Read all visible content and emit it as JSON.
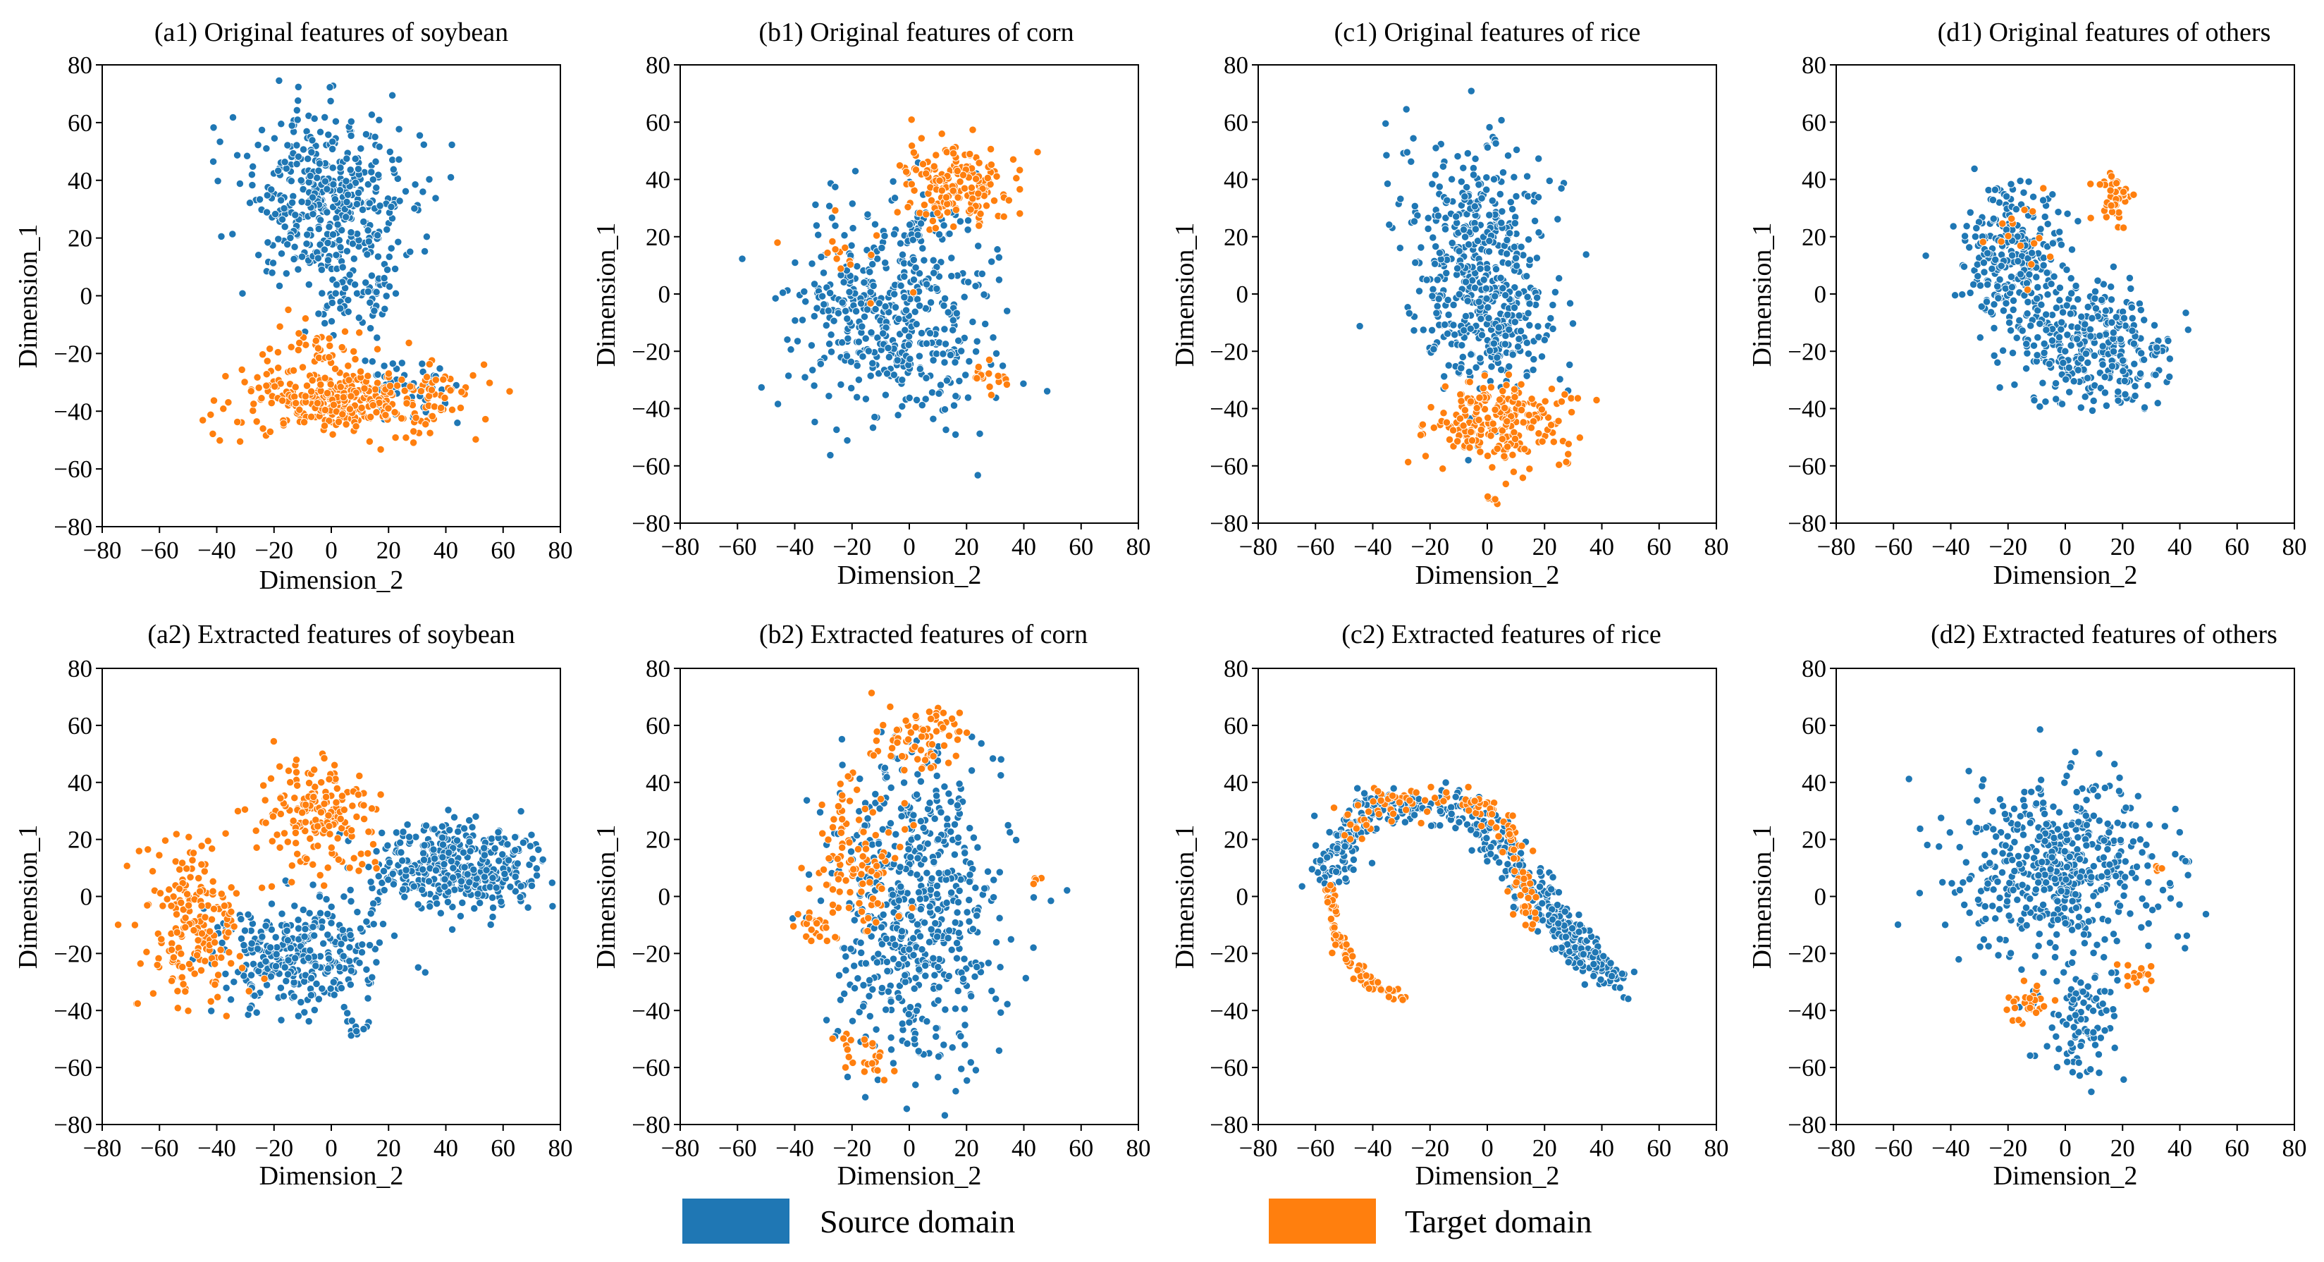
{
  "colors": {
    "source": "#1f77b4",
    "target": "#ff7f0e",
    "marker_edge": "#ffffff"
  },
  "legend": {
    "position": "bottom-center",
    "items": [
      {
        "label": "Source domain",
        "color": "#1f77b4"
      },
      {
        "label": "Target domain",
        "color": "#ff7f0e"
      }
    ]
  },
  "chart_data": [
    {
      "id": "a1",
      "type": "scatter",
      "title": "(a1) Original features of soybean",
      "xlabel": "Dimension_2",
      "ylabel": "Dimension_1",
      "xlim": [
        -80,
        80
      ],
      "ylim": [
        -80,
        80
      ],
      "xticks": [
        -80,
        -60,
        -40,
        -20,
        0,
        20,
        40,
        60,
        80
      ],
      "yticks": [
        -80,
        -60,
        -40,
        -20,
        0,
        20,
        40,
        60,
        80
      ],
      "series": [
        {
          "name": "Source domain",
          "clusters": [
            {
              "center": [
                -2,
                33
              ],
              "spread": [
                15,
                15
              ],
              "count": 420
            },
            {
              "center": [
                10,
                0
              ],
              "spread": [
                9,
                6
              ],
              "count": 60
            },
            {
              "center": [
                25,
                -32
              ],
              "spread": [
                8,
                6
              ],
              "count": 60
            }
          ]
        },
        {
          "name": "Target domain",
          "clusters": [
            {
              "center": [
                4,
                -36
              ],
              "spread": [
                20,
                6
              ],
              "count": 360
            },
            {
              "center": [
                -5,
                -16
              ],
              "spread": [
                10,
                4
              ],
              "count": 30
            }
          ]
        }
      ]
    },
    {
      "id": "b1",
      "type": "scatter",
      "title": "(b1) Original features of corn",
      "xlabel": "Dimension_2",
      "ylabel": "Dimension_1",
      "xlim": [
        -80,
        80
      ],
      "ylim": [
        -80,
        80
      ],
      "xticks": [
        -80,
        -60,
        -40,
        -20,
        0,
        20,
        40,
        60,
        80
      ],
      "yticks": [
        -80,
        -60,
        -40,
        -20,
        0,
        20,
        40,
        60,
        80
      ],
      "series": [
        {
          "name": "Source domain",
          "clusters": [
            {
              "center": [
                -5,
                -8
              ],
              "spread": [
                17,
                19
              ],
              "count": 470
            },
            {
              "center": [
                8,
                25
              ],
              "spread": [
                8,
                4
              ],
              "count": 30
            }
          ]
        },
        {
          "name": "Target domain",
          "clusters": [
            {
              "center": [
                18,
                38
              ],
              "spread": [
                11,
                7
              ],
              "count": 170
            },
            {
              "center": [
                27,
                -30
              ],
              "spread": [
                3,
                3
              ],
              "count": 18
            },
            {
              "center": [
                -22,
                10
              ],
              "spread": [
                12,
                10
              ],
              "count": 15
            }
          ]
        }
      ]
    },
    {
      "id": "c1",
      "type": "scatter",
      "title": "(c1) Original features of rice",
      "xlabel": "Dimension_2",
      "ylabel": "Dimension_1",
      "xlim": [
        -80,
        80
      ],
      "ylim": [
        -80,
        80
      ],
      "xticks": [
        -80,
        -60,
        -40,
        -20,
        0,
        20,
        40,
        60,
        80
      ],
      "yticks": [
        -80,
        -60,
        -40,
        -20,
        0,
        20,
        40,
        60,
        80
      ],
      "series": [
        {
          "name": "Source domain",
          "clusters": [
            {
              "center": [
                -3,
                10
              ],
              "spread": [
                12,
                22
              ],
              "count": 460
            },
            {
              "center": [
                8,
                -15
              ],
              "spread": [
                10,
                8
              ],
              "count": 80
            }
          ]
        },
        {
          "name": "Target domain",
          "clusters": [
            {
              "center": [
                5,
                -45
              ],
              "spread": [
                12,
                7
              ],
              "count": 230
            },
            {
              "center": [
                2,
                -71
              ],
              "spread": [
                1,
                1
              ],
              "count": 5
            }
          ]
        }
      ]
    },
    {
      "id": "d1",
      "type": "scatter",
      "title": "(d1) Original features of others",
      "xlabel": "Dimension_2",
      "ylabel": "Dimension_1",
      "xlim": [
        -80,
        80
      ],
      "ylim": [
        -80,
        80
      ],
      "xticks": [
        -80,
        -60,
        -40,
        -20,
        0,
        20,
        40,
        60,
        80
      ],
      "yticks": [
        -80,
        -60,
        -40,
        -20,
        0,
        20,
        40,
        60,
        80
      ],
      "series": [
        {
          "name": "Source domain",
          "clusters": [
            {
              "center": [
                -18,
                13
              ],
              "spread": [
                9,
                12
              ],
              "count": 260
            },
            {
              "center": [
                10,
                -18
              ],
              "spread": [
                14,
                10
              ],
              "count": 320
            }
          ]
        },
        {
          "name": "Target domain",
          "clusters": [
            {
              "center": [
                17,
                32
              ],
              "spread": [
                3,
                4
              ],
              "count": 40
            },
            {
              "center": [
                -15,
                20
              ],
              "spread": [
                8,
                10
              ],
              "count": 15
            }
          ]
        }
      ]
    },
    {
      "id": "a2",
      "type": "scatter",
      "title": "(a2) Extracted features of soybean",
      "xlabel": "Dimension_2",
      "ylabel": "Dimension_1",
      "xlim": [
        -80,
        80
      ],
      "ylim": [
        -80,
        80
      ],
      "xticks": [
        -80,
        -60,
        -40,
        -20,
        0,
        20,
        40,
        60,
        80
      ],
      "yticks": [
        -80,
        -60,
        -40,
        -20,
        0,
        20,
        40,
        60,
        80
      ],
      "series": [
        {
          "name": "Source domain",
          "clusters": [
            {
              "center": [
                45,
                10
              ],
              "spread": [
                15,
                8
              ],
              "count": 380
            },
            {
              "center": [
                -10,
                -20
              ],
              "spread": [
                16,
                10
              ],
              "count": 330
            },
            {
              "center": [
                8,
                -46
              ],
              "spread": [
                3,
                1.5
              ],
              "count": 10
            }
          ]
        },
        {
          "name": "Target domain",
          "clusters": [
            {
              "center": [
                -5,
                28
              ],
              "spread": [
                10,
                9
              ],
              "count": 180
            },
            {
              "center": [
                -48,
                -10
              ],
              "spread": [
                9,
                14
              ],
              "count": 190
            }
          ]
        }
      ]
    },
    {
      "id": "b2",
      "type": "scatter",
      "title": "(b2) Extracted features of corn",
      "xlabel": "Dimension_2",
      "ylabel": "Dimension_1",
      "xlim": [
        -80,
        80
      ],
      "ylim": [
        -80,
        80
      ],
      "xticks": [
        -80,
        -60,
        -40,
        -20,
        0,
        20,
        40,
        60,
        80
      ],
      "yticks": [
        -80,
        -60,
        -40,
        -20,
        0,
        20,
        40,
        60,
        80
      ],
      "series": [
        {
          "name": "Source domain",
          "clusters": [
            {
              "center": [
                2,
                -5
              ],
              "spread": [
                14,
                28
              ],
              "count": 600
            }
          ]
        },
        {
          "name": "Target domain",
          "clusters": [
            {
              "center": [
                5,
                55
              ],
              "spread": [
                8,
                6
              ],
              "count": 70
            },
            {
              "center": [
                -18,
                15
              ],
              "spread": [
                7,
                15
              ],
              "count": 110
            },
            {
              "center": [
                -15,
                -55
              ],
              "spread": [
                4,
                4
              ],
              "count": 25
            },
            {
              "center": [
                -32,
                -10
              ],
              "spread": [
                4,
                5
              ],
              "count": 20
            },
            {
              "center": [
                43,
                6
              ],
              "spread": [
                1,
                1
              ],
              "count": 4
            }
          ]
        }
      ]
    },
    {
      "id": "c2",
      "type": "scatter",
      "title": "(c2) Extracted features of rice",
      "xlabel": "Dimension_2",
      "ylabel": "Dimension_1",
      "xlim": [
        -80,
        80
      ],
      "ylim": [
        -80,
        80
      ],
      "xticks": [
        -80,
        -60,
        -40,
        -20,
        0,
        20,
        40,
        60,
        80
      ],
      "yticks": [
        -80,
        -60,
        -40,
        -20,
        0,
        20,
        40,
        60,
        80
      ],
      "series": [
        {
          "name": "Source domain",
          "clusters": [
            {
              "line": [
                [
                  -55,
                  5
                ],
                [
                  -48,
                  25
                ],
                [
                  -35,
                  32
                ],
                [
                  -15,
                  32
                ],
                [
                  -2,
                  26
                ],
                [
                  10,
                  10
                ],
                [
                  25,
                  -10
                ],
                [
                  40,
                  -25
                ],
                [
                  47,
                  -30
                ]
              ],
              "spread": 3.5,
              "count": 520
            }
          ]
        },
        {
          "name": "Target domain",
          "clusters": [
            {
              "line": [
                [
                  -55,
                  2
                ],
                [
                  -52,
                  -15
                ],
                [
                  -42,
                  -30
                ],
                [
                  -28,
                  -36
                ]
              ],
              "spread": 1.2,
              "count": 90
            },
            {
              "line": [
                [
                  -50,
                  22
                ],
                [
                  -35,
                  33
                ],
                [
                  -15,
                  33
                ],
                [
                  0,
                  30
                ],
                [
                  10,
                  15
                ],
                [
                  15,
                  -10
                ]
              ],
              "spread": 3,
              "count": 130
            }
          ]
        }
      ]
    },
    {
      "id": "d2",
      "type": "scatter",
      "title": "(d2) Extracted features of others",
      "xlabel": "Dimension_2",
      "ylabel": "Dimension_1",
      "xlim": [
        -80,
        80
      ],
      "ylim": [
        -80,
        80
      ],
      "xticks": [
        -80,
        -60,
        -40,
        -20,
        0,
        20,
        40,
        60,
        80
      ],
      "yticks": [
        -80,
        -60,
        -40,
        -20,
        0,
        20,
        40,
        60,
        80
      ],
      "series": [
        {
          "name": "Source domain",
          "clusters": [
            {
              "center": [
                -2,
                10
              ],
              "spread": [
                17,
                17
              ],
              "count": 520
            },
            {
              "center": [
                5,
                -45
              ],
              "spread": [
                6,
                10
              ],
              "count": 90
            }
          ]
        },
        {
          "name": "Target domain",
          "clusters": [
            {
              "center": [
                -13,
                -38
              ],
              "spread": [
                4,
                4
              ],
              "count": 25
            },
            {
              "center": [
                25,
                -28
              ],
              "spread": [
                3,
                3
              ],
              "count": 15
            },
            {
              "center": [
                33,
                10
              ],
              "spread": [
                1,
                1
              ],
              "count": 4
            }
          ]
        }
      ]
    }
  ]
}
